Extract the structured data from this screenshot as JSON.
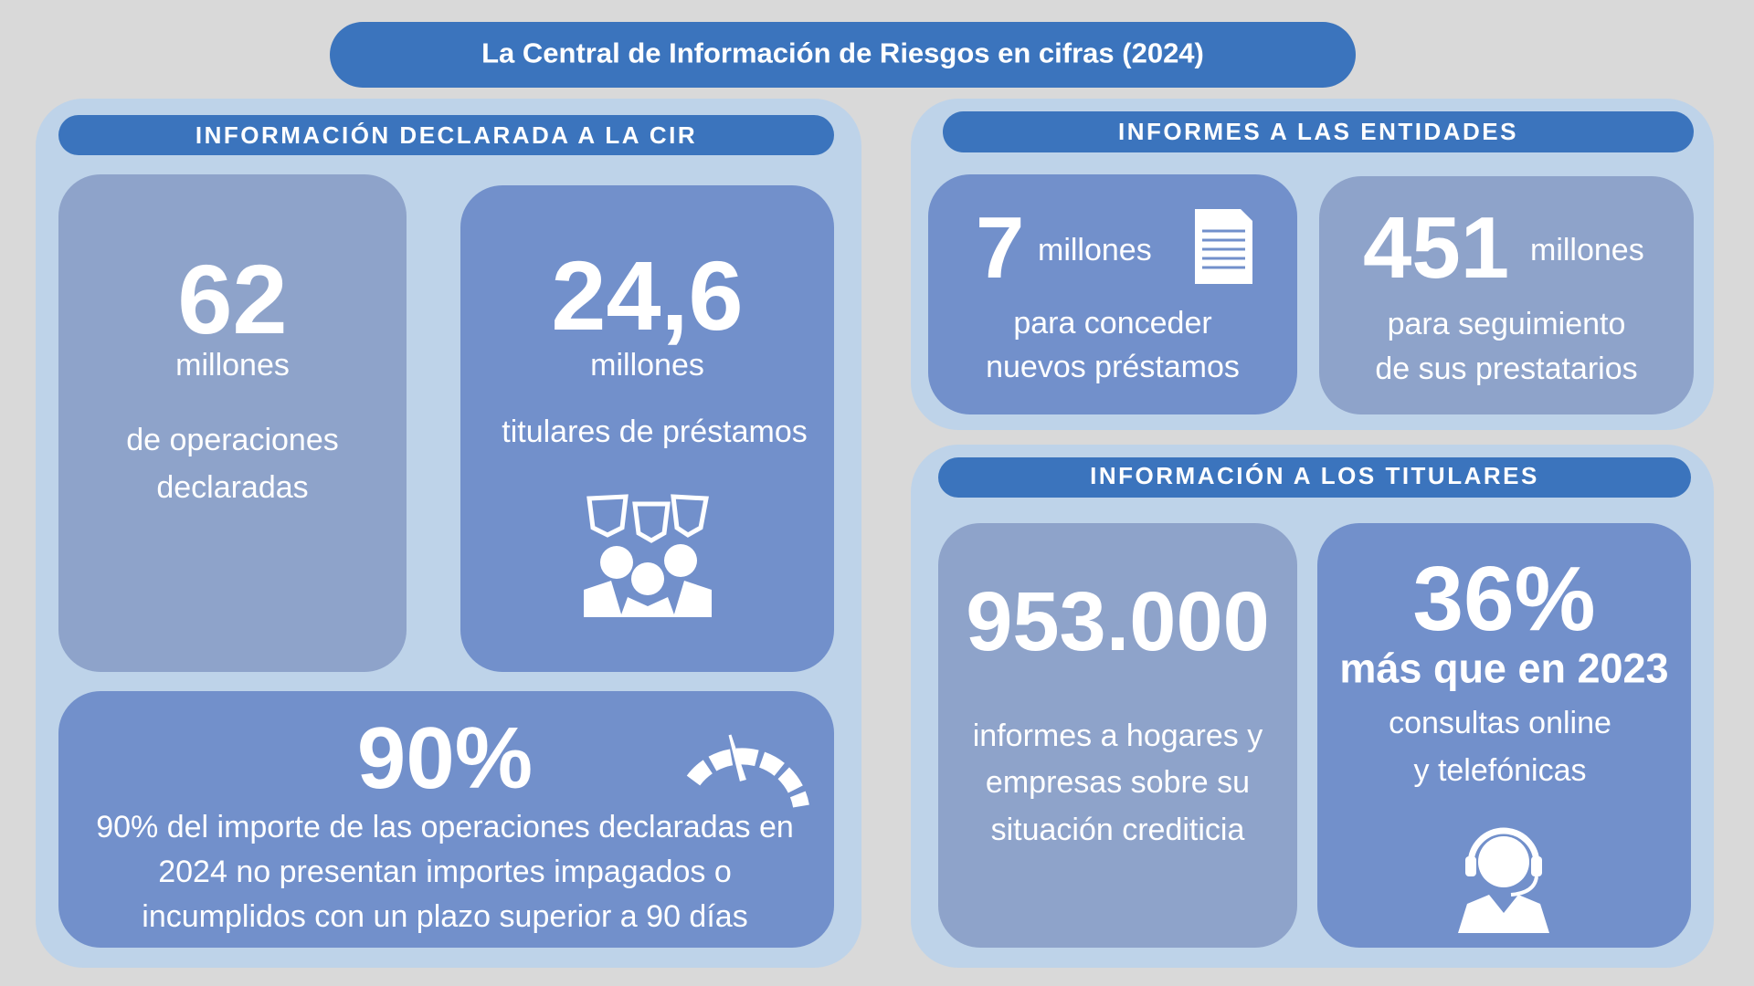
{
  "header": {
    "title": "La Central de Información de Riesgos en cifras (2024)"
  },
  "sections": [
    {
      "heading": "INFORMACIÓN DECLARADA A LA CIR",
      "cards": [
        {
          "number": "62",
          "unit": "millones",
          "lines": [
            "de operaciones",
            "declaradas"
          ]
        },
        {
          "number": "24,6",
          "unit": "millones",
          "lines": [
            "titulares de préstamos"
          ]
        },
        {
          "number": "90%",
          "lines": [
            "90% del importe de las operaciones declaradas en",
            "2024 no presentan importes impagados o",
            "incumplidos con un plazo superior a 90 días"
          ]
        }
      ]
    },
    {
      "heading": "INFORMES A LAS ENTIDADES",
      "cards": [
        {
          "number": "7",
          "unit": "millones",
          "lines": [
            "para conceder",
            "nuevos préstamos"
          ]
        },
        {
          "number": "451",
          "unit": "millones",
          "lines": [
            "para seguimiento",
            "de sus prestatarios"
          ]
        }
      ]
    },
    {
      "heading": "INFORMACIÓN A LOS TITULARES",
      "cards": [
        {
          "number": "953.000",
          "lines": [
            "informes a hogares y",
            "empresas sobre su",
            "situación crediticia"
          ]
        },
        {
          "number": "36%",
          "unit": "más que en 2023",
          "lines": [
            "consultas online",
            "y telefónicas"
          ]
        }
      ]
    }
  ]
}
